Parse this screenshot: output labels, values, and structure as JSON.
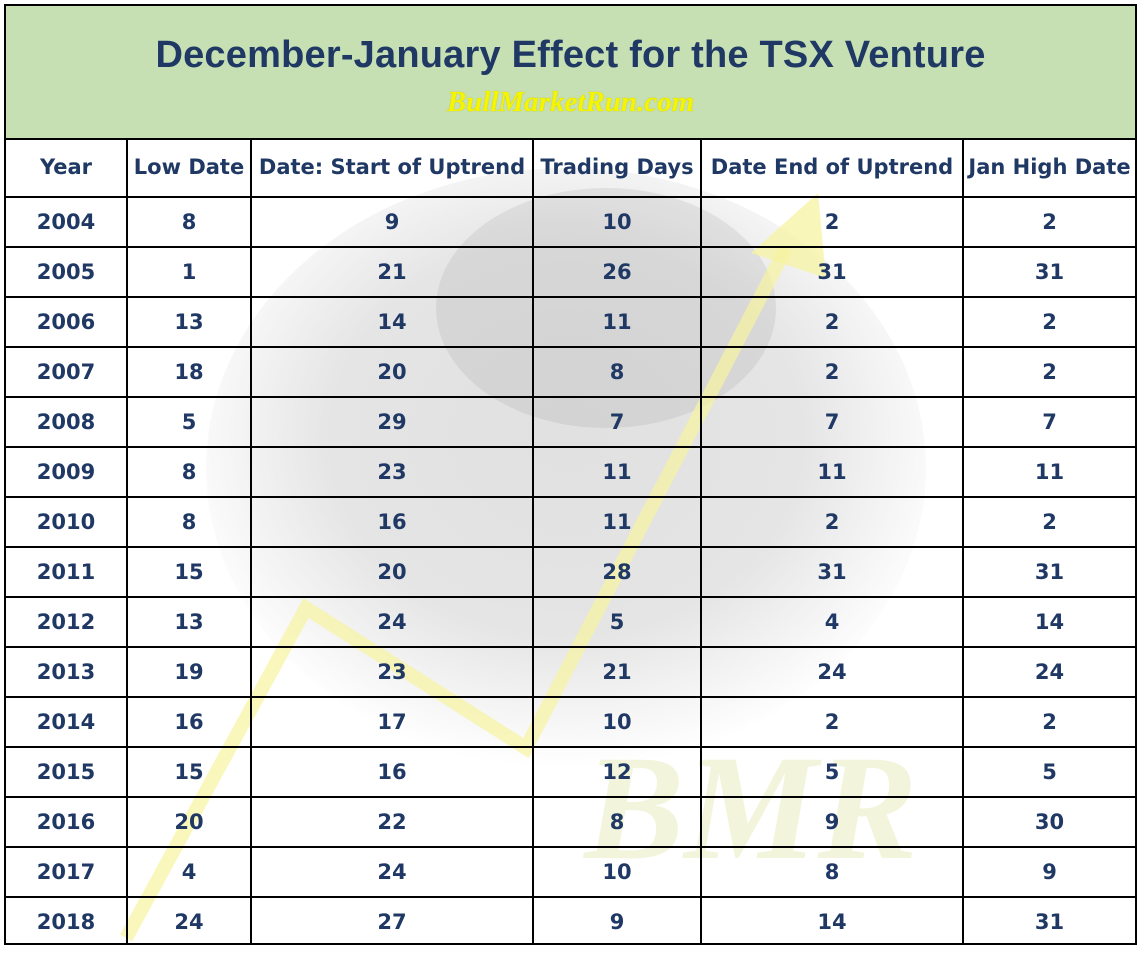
{
  "header": {
    "title": "December-January Effect for the TSX Venture",
    "subtitle": "BullMarketRun.com"
  },
  "watermark": {
    "text": "BMR"
  },
  "table": {
    "columns": [
      "Year",
      "Low Date",
      "Date: Start of Uptrend",
      "Trading Days",
      "Date End of Uptrend",
      "Jan High Date"
    ],
    "rows": [
      [
        "2004",
        "8",
        "9",
        "10",
        "2",
        "2"
      ],
      [
        "2005",
        "1",
        "21",
        "26",
        "31",
        "31"
      ],
      [
        "2006",
        "13",
        "14",
        "11",
        "2",
        "2"
      ],
      [
        "2007",
        "18",
        "20",
        "8",
        "2",
        "2"
      ],
      [
        "2008",
        "5",
        "29",
        "7",
        "7",
        "7"
      ],
      [
        "2009",
        "8",
        "23",
        "11",
        "11",
        "11"
      ],
      [
        "2010",
        "8",
        "16",
        "11",
        "2",
        "2"
      ],
      [
        "2011",
        "15",
        "20",
        "28",
        "31",
        "31"
      ],
      [
        "2012",
        "13",
        "24",
        "5",
        "4",
        "14"
      ],
      [
        "2013",
        "19",
        "23",
        "21",
        "24",
        "24"
      ],
      [
        "2014",
        "16",
        "17",
        "10",
        "2",
        "2"
      ],
      [
        "2015",
        "15",
        "16",
        "12",
        "5",
        "5"
      ],
      [
        "2016",
        "20",
        "22",
        "8",
        "9",
        "30"
      ],
      [
        "2017",
        "4",
        "24",
        "10",
        "8",
        "9"
      ],
      [
        "2018",
        "24",
        "27",
        "9",
        "14",
        "31"
      ]
    ]
  },
  "colors": {
    "header_bg": "#c6e0b4",
    "title": "#1f3864",
    "subtitle": "#f5f500",
    "cell_text": "#1f3864"
  }
}
